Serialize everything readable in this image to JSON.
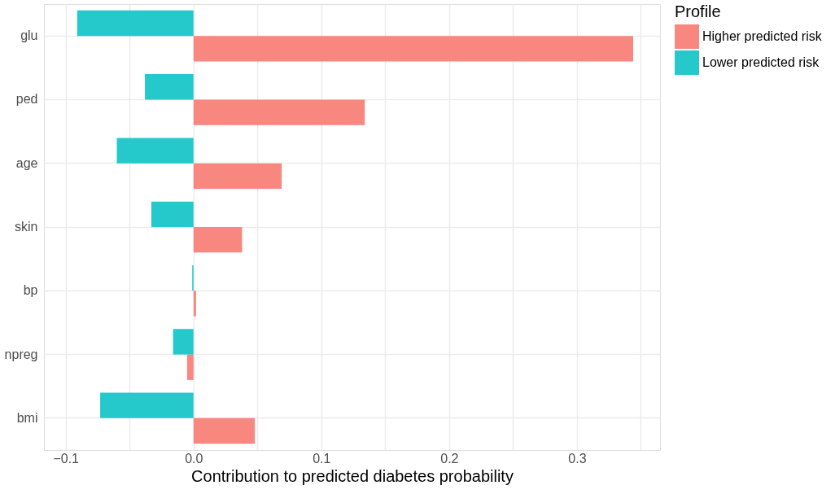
{
  "chart_data": {
    "type": "bar",
    "orientation": "horizontal",
    "xlabel": "Contribution to predicted diabetes probability",
    "legend_title": "Profile",
    "categories": [
      "glu",
      "ped",
      "age",
      "skin",
      "bp",
      "npreg",
      "bmi"
    ],
    "series": [
      {
        "name": "Higher predicted risk",
        "color": "#f8877f",
        "values": [
          0.344,
          0.134,
          0.069,
          0.038,
          0.002,
          -0.005,
          0.048
        ]
      },
      {
        "name": "Lower predicted risk",
        "color": "#26c9cb",
        "values": [
          -0.091,
          -0.038,
          -0.06,
          -0.033,
          -0.001,
          -0.016,
          -0.073
        ]
      }
    ],
    "xlim": [
      -0.117,
      0.365
    ],
    "xticks": [
      -0.1,
      {
        "value": -0.05,
        "label": null
      },
      {
        "value": 0,
        "label": "0.0"
      },
      {
        "value": 0.05,
        "label": null
      },
      0.1,
      {
        "value": 0.15,
        "label": null
      },
      0.2,
      {
        "value": 0.25,
        "label": null
      },
      0.3,
      {
        "value": 0.35,
        "label": null
      }
    ],
    "grid": true,
    "legend": "right"
  }
}
